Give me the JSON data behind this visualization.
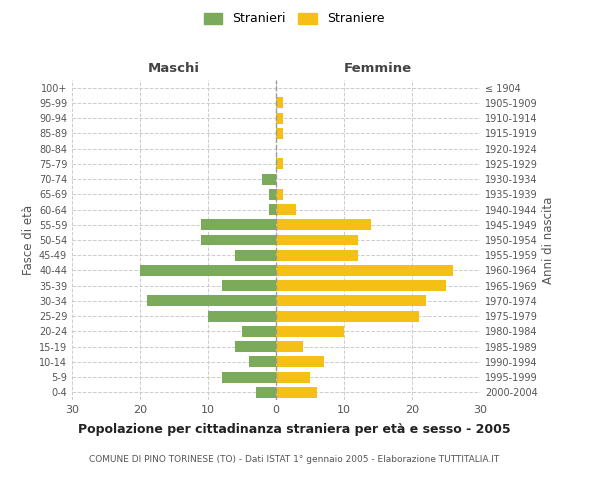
{
  "age_groups": [
    "0-4",
    "5-9",
    "10-14",
    "15-19",
    "20-24",
    "25-29",
    "30-34",
    "35-39",
    "40-44",
    "45-49",
    "50-54",
    "55-59",
    "60-64",
    "65-69",
    "70-74",
    "75-79",
    "80-84",
    "85-89",
    "90-94",
    "95-99",
    "100+"
  ],
  "birth_years": [
    "2000-2004",
    "1995-1999",
    "1990-1994",
    "1985-1989",
    "1980-1984",
    "1975-1979",
    "1970-1974",
    "1965-1969",
    "1960-1964",
    "1955-1959",
    "1950-1954",
    "1945-1949",
    "1940-1944",
    "1935-1939",
    "1930-1934",
    "1925-1929",
    "1920-1924",
    "1915-1919",
    "1910-1914",
    "1905-1909",
    "≤ 1904"
  ],
  "maschi": [
    3,
    8,
    4,
    6,
    5,
    10,
    19,
    8,
    20,
    6,
    11,
    11,
    1,
    1,
    2,
    0,
    0,
    0,
    0,
    0,
    0
  ],
  "femmine": [
    6,
    5,
    7,
    4,
    10,
    21,
    22,
    25,
    26,
    12,
    12,
    14,
    3,
    1,
    0,
    1,
    0,
    1,
    1,
    1,
    0
  ],
  "color_maschi": "#7aaa5a",
  "color_femmine": "#f5c015",
  "title": "Popolazione per cittadinanza straniera per età e sesso - 2005",
  "subtitle": "COMUNE DI PINO TORINESE (TO) - Dati ISTAT 1° gennaio 2005 - Elaborazione TUTTITALIA.IT",
  "xlabel_left": "Maschi",
  "xlabel_right": "Femmine",
  "ylabel_left": "Fasce di età",
  "ylabel_right": "Anni di nascita",
  "legend_maschi": "Stranieri",
  "legend_femmine": "Straniere",
  "xlim": 30,
  "background_color": "#ffffff",
  "grid_color": "#cccccc"
}
